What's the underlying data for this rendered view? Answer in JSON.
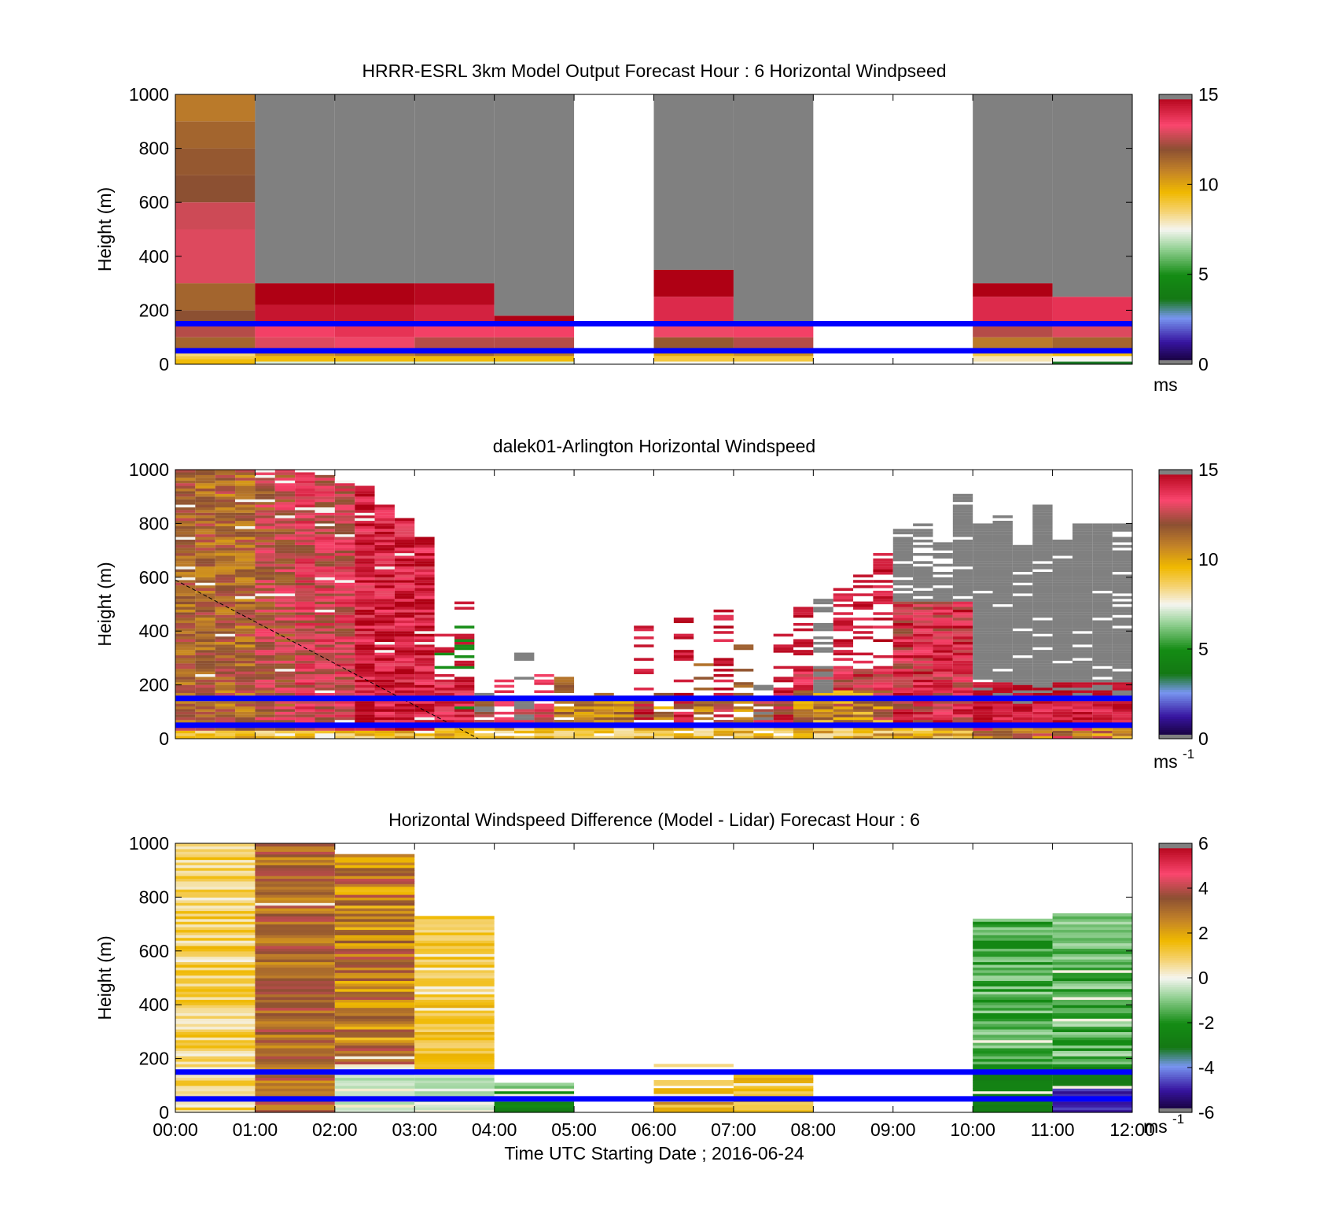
{
  "chart_data": [
    {
      "type": "heatmap",
      "title": "HRRR-ESRL 3km Model Output   Forecast Hour : 6 Horizontal Windpseed",
      "ylabel": "Height (m)",
      "xlabel": "",
      "ylim": [
        0,
        1000
      ],
      "yticks": [
        "0",
        "200",
        "400",
        "600",
        "800",
        "1000"
      ],
      "colorbar": {
        "ticks": [
          "0",
          "5",
          "10",
          "15"
        ],
        "range": [
          0,
          15
        ],
        "unit": "ms",
        "unit_sup": ""
      },
      "reference_lines_m": [
        50,
        150
      ],
      "columns": [
        {
          "t": [
            0,
            1
          ],
          "cells": [
            [
              0,
              20,
              9.5
            ],
            [
              20,
              30,
              9
            ],
            [
              30,
              50,
              8.5
            ],
            [
              50,
              100,
              11.5
            ],
            [
              100,
              150,
              12.5
            ],
            [
              150,
              200,
              12
            ],
            [
              200,
              300,
              11.5
            ],
            [
              300,
              500,
              13
            ],
            [
              500,
              600,
              12.8
            ],
            [
              600,
              700,
              12
            ],
            [
              700,
              800,
              11.8
            ],
            [
              800,
              900,
              11.5
            ],
            [
              900,
              1000,
              11
            ]
          ]
        },
        {
          "t": [
            1,
            2
          ],
          "cells": [
            [
              0,
              10,
              7.2
            ],
            [
              10,
              30,
              9.5
            ],
            [
              30,
              50,
              10.5
            ],
            [
              50,
              100,
              13
            ],
            [
              100,
              160,
              13.5
            ],
            [
              160,
              220,
              14.5
            ],
            [
              220,
              300,
              15
            ],
            [
              300,
              1000,
              -1
            ]
          ]
        },
        {
          "t": [
            2,
            3
          ],
          "cells": [
            [
              0,
              10,
              7.2
            ],
            [
              10,
              30,
              9.5
            ],
            [
              30,
              50,
              11
            ],
            [
              50,
              100,
              13.2
            ],
            [
              100,
              160,
              13.8
            ],
            [
              160,
              220,
              14.5
            ],
            [
              220,
              300,
              15
            ],
            [
              300,
              1000,
              -1
            ]
          ]
        },
        {
          "t": [
            3,
            4
          ],
          "cells": [
            [
              0,
              10,
              7.2
            ],
            [
              10,
              30,
              9.5
            ],
            [
              30,
              50,
              11.5
            ],
            [
              50,
              100,
              12.5
            ],
            [
              100,
              160,
              13.5
            ],
            [
              160,
              220,
              14.2
            ],
            [
              220,
              300,
              14.8
            ],
            [
              300,
              1000,
              -1
            ]
          ]
        },
        {
          "t": [
            4,
            5
          ],
          "cells": [
            [
              0,
              10,
              7.2
            ],
            [
              10,
              30,
              9.5
            ],
            [
              30,
              50,
              11
            ],
            [
              50,
              100,
              12.5
            ],
            [
              100,
              160,
              13.5
            ],
            [
              160,
              180,
              15
            ],
            [
              180,
              1000,
              -1
            ]
          ]
        },
        {
          "t": [
            6,
            7
          ],
          "cells": [
            [
              0,
              10,
              7.5
            ],
            [
              10,
              30,
              9
            ],
            [
              30,
              50,
              10
            ],
            [
              50,
              100,
              11.8
            ],
            [
              100,
              150,
              13.2
            ],
            [
              150,
              250,
              14
            ],
            [
              250,
              350,
              15
            ],
            [
              350,
              1000,
              -1
            ]
          ]
        },
        {
          "t": [
            7,
            8
          ],
          "cells": [
            [
              0,
              10,
              7.5
            ],
            [
              10,
              30,
              9
            ],
            [
              30,
              50,
              10.5
            ],
            [
              50,
              100,
              12.5
            ],
            [
              100,
              160,
              13.5
            ],
            [
              160,
              1000,
              -1
            ]
          ]
        },
        {
          "t": [
            10,
            11
          ],
          "cells": [
            [
              0,
              10,
              7.5
            ],
            [
              10,
              30,
              8
            ],
            [
              30,
              50,
              9
            ],
            [
              50,
              100,
              11
            ],
            [
              100,
              150,
              12.5
            ],
            [
              150,
              250,
              14
            ],
            [
              250,
              300,
              15
            ],
            [
              300,
              1000,
              -1
            ]
          ]
        },
        {
          "t": [
            11,
            12
          ],
          "cells": [
            [
              0,
              10,
              3.5
            ],
            [
              10,
              30,
              7.5
            ],
            [
              30,
              50,
              9.5
            ],
            [
              50,
              100,
              11.5
            ],
            [
              100,
              150,
              13
            ],
            [
              150,
              250,
              13.8
            ],
            [
              250,
              1000,
              -1
            ]
          ]
        }
      ]
    },
    {
      "type": "heatmap",
      "title": "dalek01-Arlington  Horizontal Windspeed",
      "ylabel": "Height (m)",
      "xlabel": "",
      "ylim": [
        0,
        1000
      ],
      "yticks": [
        "0",
        "200",
        "400",
        "600",
        "800",
        "1000"
      ],
      "colorbar": {
        "ticks": [
          "0",
          "5",
          "10",
          "15"
        ],
        "range": [
          0,
          15
        ],
        "unit": "ms",
        "unit_sup": "-1"
      },
      "reference_lines_m": [
        50,
        150
      ],
      "columns": [
        {
          "t": [
            0.0,
            0.25
          ],
          "top": 1000,
          "profile": "dense_brown"
        },
        {
          "t": [
            0.25,
            0.5
          ],
          "top": 1000,
          "profile": "dense_brown"
        },
        {
          "t": [
            0.5,
            0.75
          ],
          "top": 1000,
          "profile": "dense_brown"
        },
        {
          "t": [
            0.75,
            1.0
          ],
          "top": 1000,
          "profile": "dense_brown"
        },
        {
          "t": [
            1.0,
            1.25
          ],
          "top": 1000,
          "profile": "dense_mix"
        },
        {
          "t": [
            1.25,
            1.5
          ],
          "top": 1000,
          "profile": "dense_mix"
        },
        {
          "t": [
            1.5,
            1.75
          ],
          "top": 990,
          "profile": "dense_pink"
        },
        {
          "t": [
            1.75,
            2.0
          ],
          "top": 980,
          "profile": "dense_pink"
        },
        {
          "t": [
            2.0,
            2.25
          ],
          "top": 960,
          "profile": "dense_pink"
        },
        {
          "t": [
            2.25,
            2.5
          ],
          "top": 940,
          "profile": "dense_red"
        },
        {
          "t": [
            2.5,
            2.75
          ],
          "top": 870,
          "profile": "dense_red"
        },
        {
          "t": [
            2.75,
            3.0
          ],
          "top": 820,
          "profile": "dense_red"
        },
        {
          "t": [
            3.0,
            3.25
          ],
          "top": 750,
          "profile": "dense_red"
        },
        {
          "t": [
            3.25,
            3.5
          ],
          "top": 430,
          "profile": "sparse_red"
        },
        {
          "t": [
            3.5,
            3.75
          ],
          "top": 520,
          "profile": "sparse_red"
        },
        {
          "t": [
            3.75,
            4.0
          ],
          "top": 190,
          "profile": "low_gray"
        },
        {
          "t": [
            4.0,
            4.25
          ],
          "top": 230,
          "profile": "low_pink"
        },
        {
          "t": [
            4.25,
            4.5
          ],
          "top": 320,
          "profile": "low_gray"
        },
        {
          "t": [
            4.5,
            4.75
          ],
          "top": 290,
          "profile": "low_pink"
        },
        {
          "t": [
            4.75,
            5.0
          ],
          "top": 240,
          "profile": "low_gold"
        },
        {
          "t": [
            5.0,
            5.25
          ],
          "top": 230,
          "profile": "low_gold"
        },
        {
          "t": [
            5.25,
            5.5
          ],
          "top": 210,
          "profile": "low_gold"
        },
        {
          "t": [
            5.5,
            5.75
          ],
          "top": 200,
          "profile": "low_gold"
        },
        {
          "t": [
            5.75,
            6.0
          ],
          "top": 440,
          "profile": "low_red"
        },
        {
          "t": [
            6.0,
            6.25
          ],
          "top": 220,
          "profile": "low_gold"
        },
        {
          "t": [
            6.25,
            6.5
          ],
          "top": 500,
          "profile": "low_red"
        },
        {
          "t": [
            6.5,
            6.75
          ],
          "top": 300,
          "profile": "low_gold"
        },
        {
          "t": [
            6.75,
            7.0
          ],
          "top": 480,
          "profile": "low_red"
        },
        {
          "t": [
            7.0,
            7.25
          ],
          "top": 360,
          "profile": "low_gold"
        },
        {
          "t": [
            7.25,
            7.5
          ],
          "top": 340,
          "profile": "low_gray"
        },
        {
          "t": [
            7.5,
            7.75
          ],
          "top": 420,
          "profile": "low_red"
        },
        {
          "t": [
            7.75,
            8.0
          ],
          "top": 500,
          "profile": "mid_pink"
        },
        {
          "t": [
            8.0,
            8.25
          ],
          "top": 520,
          "profile": "mid_gray"
        },
        {
          "t": [
            8.25,
            8.5
          ],
          "top": 560,
          "profile": "mid_pink"
        },
        {
          "t": [
            8.5,
            8.75
          ],
          "top": 620,
          "profile": "mid_pink"
        },
        {
          "t": [
            8.75,
            9.0
          ],
          "top": 700,
          "profile": "mid_pink"
        },
        {
          "t": [
            9.0,
            9.25
          ],
          "top": 780,
          "profile": "gray_top_pink"
        },
        {
          "t": [
            9.25,
            9.5
          ],
          "top": 800,
          "profile": "gray_top_pink"
        },
        {
          "t": [
            9.5,
            9.75
          ],
          "top": 730,
          "profile": "gray_top_red"
        },
        {
          "t": [
            9.75,
            10.0
          ],
          "top": 910,
          "profile": "gray_top_red"
        },
        {
          "t": [
            10.0,
            10.25
          ],
          "top": 800,
          "profile": "gray_low_red"
        },
        {
          "t": [
            10.25,
            10.5
          ],
          "top": 830,
          "profile": "gray_low_red"
        },
        {
          "t": [
            10.5,
            10.75
          ],
          "top": 720,
          "profile": "gray_low_red"
        },
        {
          "t": [
            10.75,
            11.0
          ],
          "top": 870,
          "profile": "gray_low_red"
        },
        {
          "t": [
            11.0,
            11.25
          ],
          "top": 760,
          "profile": "gray_low_red"
        },
        {
          "t": [
            11.25,
            11.5
          ],
          "top": 800,
          "profile": "gray_low_red"
        },
        {
          "t": [
            11.5,
            11.75
          ],
          "top": 800,
          "profile": "gray_low_red"
        },
        {
          "t": [
            11.75,
            12.0
          ],
          "top": 800,
          "profile": "gray_low_red"
        }
      ]
    },
    {
      "type": "heatmap",
      "title": "Horizontal Windspeed Difference (Model - Lidar) Forecast Hour : 6",
      "ylabel": "Height (m)",
      "xlabel": "Time UTC  Starting Date ; 2016-06-24",
      "ylim": [
        0,
        1000
      ],
      "xticks": [
        "00:00",
        "01:00",
        "02:00",
        "03:00",
        "04:00",
        "05:00",
        "06:00",
        "07:00",
        "08:00",
        "09:00",
        "10:00",
        "11:00",
        "12:00"
      ],
      "yticks": [
        "0",
        "200",
        "400",
        "600",
        "800",
        "1000"
      ],
      "colorbar": {
        "ticks": [
          "-6",
          "-4",
          "-2",
          "0",
          "2",
          "4",
          "6"
        ],
        "range": [
          -6,
          6
        ],
        "unit": "ms",
        "unit_sup": "-1"
      },
      "reference_lines_m": [
        50,
        150
      ],
      "columns": [
        {
          "t": [
            0,
            1
          ],
          "top": 1000,
          "base": 0.9,
          "spread": 0.9
        },
        {
          "t": [
            1,
            2
          ],
          "top": 1000,
          "base": 3.2,
          "spread": 1.0
        },
        {
          "t": [
            2,
            3
          ],
          "top": 960,
          "base": 2.8,
          "spread": 1.4
        },
        {
          "t": [
            3,
            4
          ],
          "top": 730,
          "base": 1.3,
          "spread": 0.7
        },
        {
          "t": [
            4,
            5
          ],
          "top": 110,
          "base": -1.4,
          "spread": 0.8
        },
        {
          "t": [
            6,
            7
          ],
          "top": 180,
          "base": 0.5,
          "spread": 2.2
        },
        {
          "t": [
            7,
            8
          ],
          "top": 150,
          "base": 1.3,
          "spread": 0.8
        },
        {
          "t": [
            10,
            11
          ],
          "top": 720,
          "base": -1.5,
          "spread": 0.9
        },
        {
          "t": [
            11,
            12
          ],
          "top": 740,
          "base": -1.4,
          "spread": 1.0
        }
      ]
    }
  ]
}
